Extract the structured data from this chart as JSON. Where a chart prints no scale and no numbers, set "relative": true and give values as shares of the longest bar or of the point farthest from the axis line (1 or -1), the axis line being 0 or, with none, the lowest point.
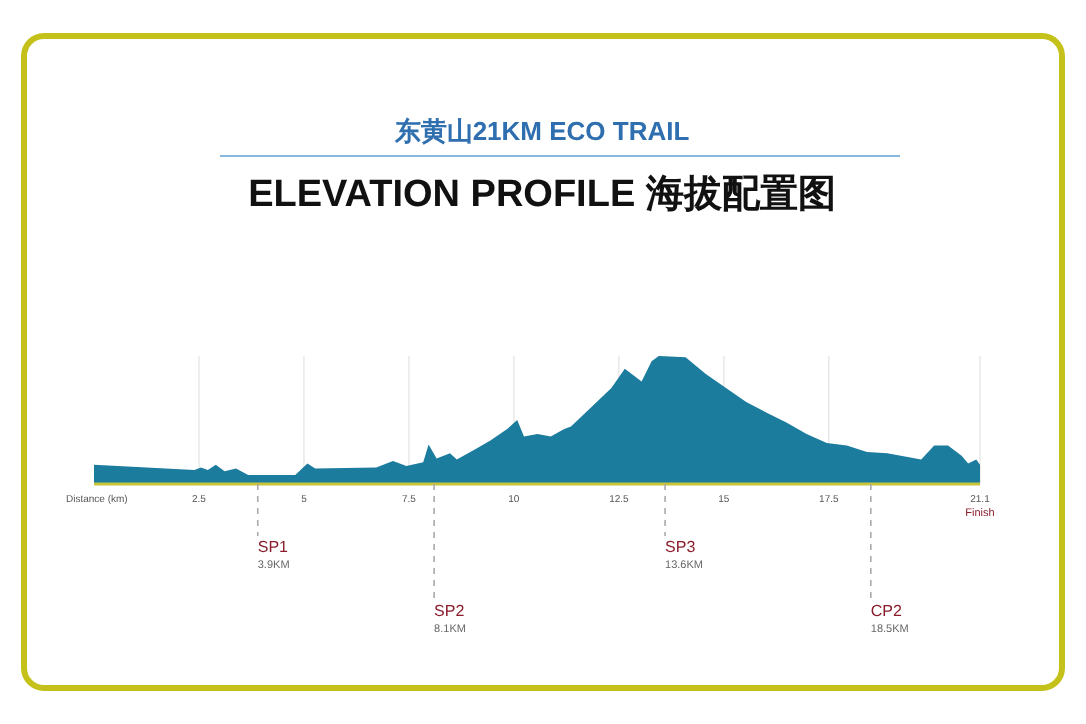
{
  "chart_data": {
    "type": "area",
    "subtitle": "东黄山21KM ECO TRAIL",
    "title": "ELEVATION PROFILE 海拔配置图",
    "xlabel": "Distance (km)",
    "relative": true,
    "xlim": [
      0,
      21.1
    ],
    "xticks": [
      2.5,
      5,
      7.5,
      10,
      12.5,
      15,
      17.5,
      21.1
    ],
    "grid": "x",
    "series": [
      {
        "color": "#1b7c9e",
        "x": [
          0,
          2.39,
          2.55,
          2.71,
          2.9,
          3.11,
          3.38,
          3.67,
          4.79,
          5.08,
          5.27,
          6.72,
          7.12,
          7.44,
          7.84,
          7.97,
          8.16,
          8.48,
          8.64,
          9.12,
          9.44,
          9.84,
          10.08,
          10.24,
          10.56,
          10.88,
          11.2,
          11.36,
          11.84,
          12.32,
          12.64,
          13.04,
          13.28,
          13.45,
          14.09,
          14.57,
          15.05,
          15.53,
          16.01,
          16.49,
          16.97,
          17.45,
          17.93,
          18.41,
          18.89,
          19.7,
          20.01,
          20.34,
          20.66,
          20.82,
          21.01,
          21.1
        ],
        "values": [
          0.15,
          0.11,
          0.13,
          0.11,
          0.15,
          0.1,
          0.12,
          0.07,
          0.07,
          0.16,
          0.12,
          0.13,
          0.18,
          0.14,
          0.17,
          0.31,
          0.2,
          0.24,
          0.19,
          0.28,
          0.34,
          0.43,
          0.5,
          0.37,
          0.39,
          0.37,
          0.43,
          0.45,
          0.6,
          0.75,
          0.9,
          0.8,
          0.96,
          1,
          0.99,
          0.86,
          0.75,
          0.64,
          0.56,
          0.48,
          0.39,
          0.32,
          0.3,
          0.25,
          0.24,
          0.19,
          0.3,
          0.3,
          0.22,
          0.16,
          0.19,
          0.15
        ]
      }
    ],
    "ref_lines": [
      {
        "axis": "x",
        "value": 3.9,
        "label": "SP1\n3.9KM",
        "color": "#aaaaaa",
        "line_style": "dashed"
      },
      {
        "axis": "x",
        "value": 8.1,
        "label": "SP2\n8.1KM",
        "color": "#aaaaaa",
        "line_style": "dashed"
      },
      {
        "axis": "x",
        "value": 13.6,
        "label": "SP3\n13.6KM",
        "color": "#aaaaaa",
        "line_style": "dashed"
      },
      {
        "axis": "x",
        "value": 18.5,
        "label": "CP2\n18.5KM",
        "color": "#aaaaaa",
        "line_style": "dashed"
      }
    ],
    "annotations": [
      "Finish"
    ]
  }
}
